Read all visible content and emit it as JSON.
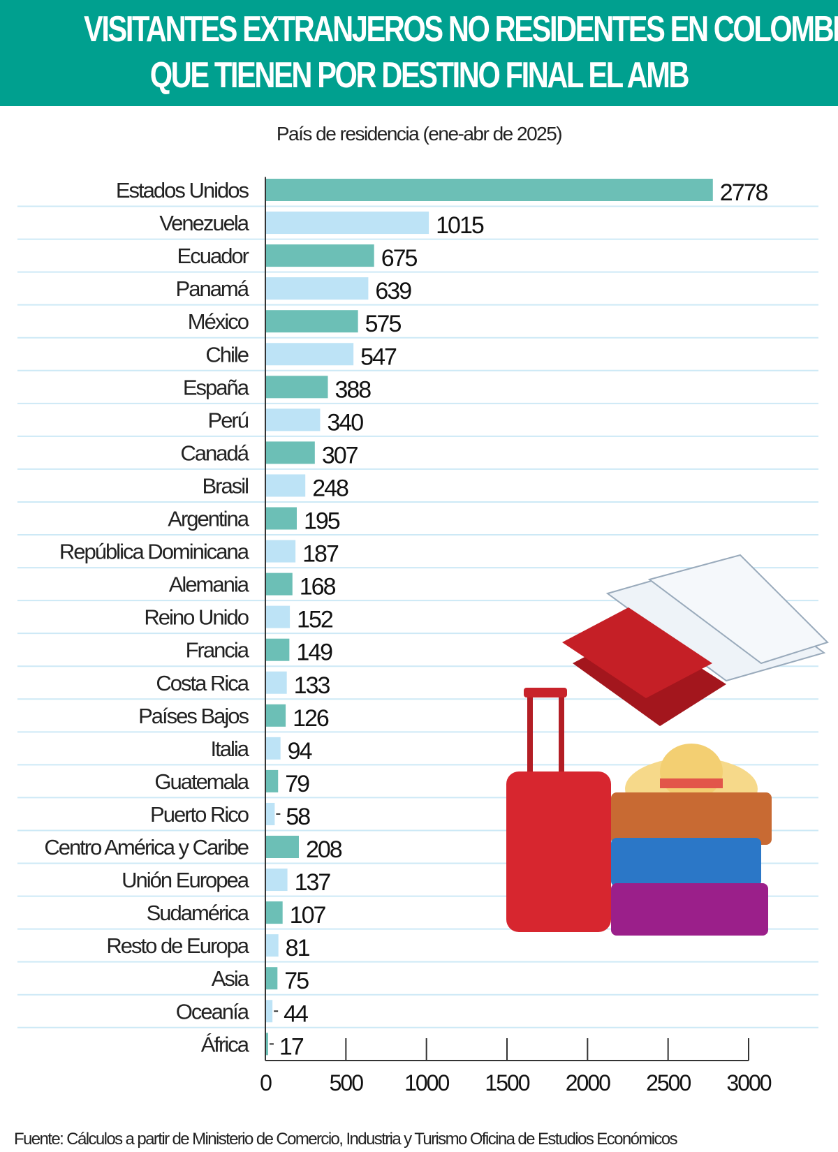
{
  "header": {
    "title_line1": "VISITANTES EXTRANJEROS NO RESIDENTES EN COLOMBIA,",
    "title_line2": "QUE TIENEN POR DESTINO FINAL EL AMB"
  },
  "source": "Fuente: Cálculos a partir de Ministerio de Comercio, Industria y Turismo Oficina de Estudios Económicos",
  "colors": {
    "header": "#00a08f",
    "bar_teal": "#6cbfb6",
    "bar_lightblue": "#bde3f6",
    "gridline": "#cde9f6"
  },
  "illustration": [
    "passport-icon",
    "boarding-pass-icon",
    "suitcase-icon",
    "hat-icon"
  ],
  "chart_data": {
    "type": "bar",
    "orientation": "horizontal",
    "title": "País de residencia (ene-abr de 2025)",
    "categories": [
      "Estados Unidos",
      "Venezuela",
      "Ecuador",
      "Panamá",
      "México",
      "Chile",
      "España",
      "Perú",
      "Canadá",
      "Brasil",
      "Argentina",
      "República Dominicana",
      "Alemania",
      "Reino Unido",
      "Francia",
      "Costa Rica",
      "Países Bajos",
      "Italia",
      "Guatemala",
      "Puerto Rico",
      "Centro América y Caribe",
      "Unión Europea",
      "Sudamérica",
      "Resto de Europa",
      "Asia",
      "Oceanía",
      "África"
    ],
    "values": [
      2778,
      1015,
      675,
      639,
      575,
      547,
      388,
      340,
      307,
      248,
      195,
      187,
      168,
      152,
      149,
      133,
      126,
      94,
      79,
      58,
      208,
      137,
      107,
      81,
      75,
      44,
      17
    ],
    "xlim": [
      0,
      3000
    ],
    "xticks": [
      "0",
      "500",
      "1000",
      "1500",
      "2000",
      "2500",
      "3000"
    ],
    "grid": true,
    "bar_colors": "alternating teal / light blue"
  }
}
